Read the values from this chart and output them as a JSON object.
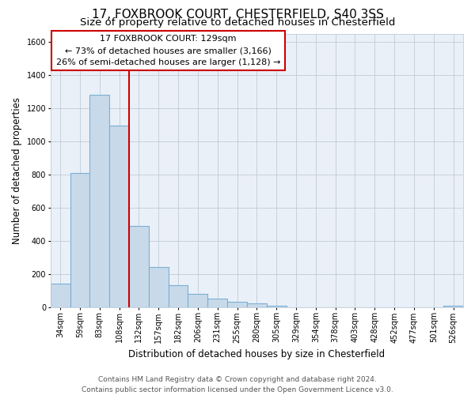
{
  "title": "17, FOXBROOK COURT, CHESTERFIELD, S40 3SS",
  "subtitle": "Size of property relative to detached houses in Chesterfield",
  "xlabel": "Distribution of detached houses by size in Chesterfield",
  "ylabel": "Number of detached properties",
  "footer_line1": "Contains HM Land Registry data © Crown copyright and database right 2024.",
  "footer_line2": "Contains public sector information licensed under the Open Government Licence v3.0.",
  "bin_labels": [
    "34sqm",
    "59sqm",
    "83sqm",
    "108sqm",
    "132sqm",
    "157sqm",
    "182sqm",
    "206sqm",
    "231sqm",
    "255sqm",
    "280sqm",
    "305sqm",
    "329sqm",
    "354sqm",
    "378sqm",
    "403sqm",
    "428sqm",
    "452sqm",
    "477sqm",
    "501sqm",
    "526sqm"
  ],
  "bar_values": [
    140,
    810,
    1280,
    1095,
    490,
    240,
    130,
    80,
    50,
    30,
    20,
    10,
    0,
    0,
    0,
    0,
    0,
    0,
    0,
    0,
    10
  ],
  "bar_color": "#c8daea",
  "bar_edge_color": "#7bafd4",
  "property_line_x": 3.5,
  "property_line_color": "#cc0000",
  "annotation_line1": "17 FOXBROOK COURT: 129sqm",
  "annotation_line2": "← 73% of detached houses are smaller (3,166)",
  "annotation_line3": "26% of semi-detached houses are larger (1,128) →",
  "ylim": [
    0,
    1650
  ],
  "yticks": [
    0,
    200,
    400,
    600,
    800,
    1000,
    1200,
    1400,
    1600
  ],
  "ax_facecolor": "#eaf0f8",
  "grid_color": "#c0ccd8",
  "background_color": "#ffffff",
  "title_fontsize": 11,
  "subtitle_fontsize": 9.5,
  "axis_label_fontsize": 8.5,
  "tick_fontsize": 7,
  "footer_fontsize": 6.5,
  "annotation_fontsize": 8
}
